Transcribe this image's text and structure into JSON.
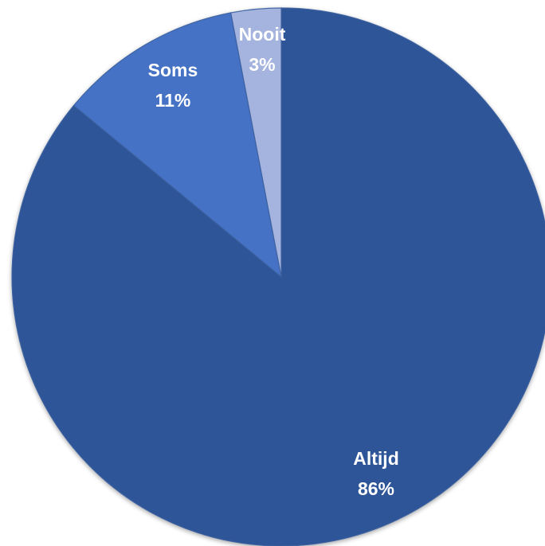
{
  "chart_data": {
    "type": "pie",
    "slices": [
      {
        "label": "Altijd",
        "value": 86,
        "value_label": "86%",
        "color": "#2f5597"
      },
      {
        "label": "Soms",
        "value": 11,
        "value_label": "11%",
        "color": "#4472c4"
      },
      {
        "label": "Nooit",
        "value": 3,
        "value_label": "3%",
        "color": "#a5b4de"
      }
    ],
    "start": "12 o'clock",
    "direction": "clockwise",
    "legend": "none",
    "data_labels": "inside slices"
  }
}
